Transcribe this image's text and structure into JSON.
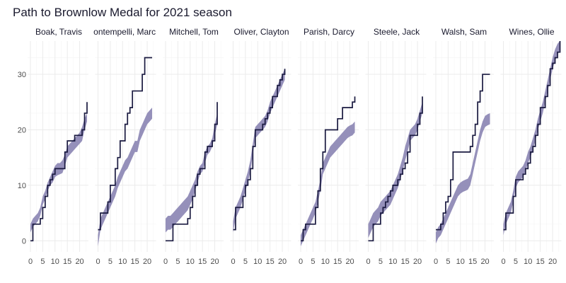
{
  "chart_data": {
    "type": "line",
    "title": "Path to Brownlow Medal for 2021 season",
    "xlabel": "",
    "ylabel": "",
    "xlim": [
      0,
      23
    ],
    "ylim": [
      -2,
      36
    ],
    "x_ticks": [
      0,
      5,
      10,
      15,
      20
    ],
    "y_ticks": [
      0,
      10,
      20,
      30
    ],
    "grid": true,
    "legend": "none",
    "colors": {
      "actual": "#1a1a40",
      "predicted_band": "#8c87b4"
    },
    "panels": [
      {
        "name": "Boak, Travis",
        "actual": [
          0,
          3,
          3,
          3,
          4,
          6,
          8,
          10,
          11,
          12,
          13,
          13,
          13,
          13,
          16,
          18,
          18,
          18,
          19,
          19,
          19,
          20,
          23,
          25
        ],
        "band_lo": [
          1.5,
          2.5,
          3,
          3.5,
          4.5,
          6.5,
          7.5,
          9,
          10,
          10.5,
          11.5,
          11.8,
          12,
          12.2,
          13.5,
          15,
          15.5,
          16,
          16.5,
          17,
          17.5,
          18,
          20,
          21.5
        ],
        "band_hi": [
          3,
          4,
          4.5,
          5,
          6,
          8,
          9,
          10.5,
          11.5,
          12.5,
          13.5,
          14,
          14,
          14.5,
          15.5,
          17,
          17.5,
          18,
          18.5,
          19,
          19.5,
          20.5,
          22,
          23
        ]
      },
      {
        "name": "Bontempelli, Marcus",
        "actual": [
          2,
          5,
          5,
          5,
          7,
          10,
          10,
          13,
          15,
          18,
          18,
          21,
          23,
          24,
          27,
          27,
          27,
          27,
          30,
          33,
          33,
          33,
          33
        ],
        "band_lo": [
          -1,
          2,
          3,
          4,
          5,
          6,
          7,
          8,
          9.5,
          10.5,
          11.5,
          12.5,
          13,
          14,
          15,
          16,
          16,
          18,
          19,
          20,
          21,
          21.5,
          22
        ],
        "band_hi": [
          1,
          4,
          5,
          6,
          7,
          8,
          9,
          10,
          11.5,
          12.5,
          13.5,
          14.5,
          15,
          16,
          17,
          18,
          18,
          20,
          21,
          22,
          23,
          23.5,
          24
        ]
      },
      {
        "name": "Mitchell, Tom",
        "actual": [
          0,
          0,
          0,
          3,
          3,
          3,
          3,
          3,
          3,
          4,
          6,
          8,
          10,
          12,
          13,
          13,
          16,
          17,
          17,
          18,
          21,
          25
        ],
        "band_lo": [
          1.5,
          2,
          2,
          2.5,
          3,
          3.5,
          4,
          4.5,
          5,
          5.5,
          6.5,
          7.5,
          9,
          10.5,
          12,
          12.5,
          14,
          15.5,
          16,
          17,
          19,
          21
        ],
        "band_hi": [
          4,
          4.5,
          4.5,
          5,
          5.5,
          6,
          6.5,
          7,
          7.5,
          8,
          9,
          10,
          11,
          12.5,
          13.5,
          14,
          16,
          17,
          17.5,
          18.5,
          21,
          23
        ]
      },
      {
        "name": "Oliver, Clayton",
        "actual": [
          2,
          6,
          6,
          6,
          8,
          10,
          11,
          13,
          17,
          20,
          20,
          20,
          21,
          22,
          23,
          24,
          26,
          26,
          28,
          29,
          30,
          31
        ],
        "band_lo": [
          1.5,
          4,
          5,
          6,
          7.5,
          9,
          10.5,
          12.5,
          15.5,
          18.5,
          19,
          19.5,
          20,
          20.5,
          21.5,
          23,
          24,
          25,
          26,
          27,
          28,
          29
        ],
        "band_hi": [
          3.5,
          6,
          7,
          8,
          9.5,
          11,
          12.5,
          14.5,
          17.5,
          20.5,
          21,
          21.5,
          22,
          22.5,
          23.5,
          25,
          26,
          27,
          28,
          29,
          30,
          31
        ]
      },
      {
        "name": "Parish, Darcy",
        "actual": [
          0,
          2,
          3,
          3,
          3,
          3,
          6,
          9,
          13,
          16,
          20,
          20,
          20,
          20,
          20,
          22,
          22,
          24,
          24,
          24,
          24,
          25,
          26
        ],
        "band_lo": [
          -1,
          0,
          1,
          2,
          3,
          4,
          5,
          7,
          9,
          12,
          13,
          14,
          15,
          15.5,
          16,
          16.5,
          17,
          17.5,
          18,
          18.5,
          18.8,
          19,
          19.5
        ],
        "band_hi": [
          1,
          2,
          3,
          4,
          5,
          6,
          7,
          9,
          11,
          14,
          15,
          16,
          17,
          17.5,
          18,
          18.5,
          19,
          19.5,
          20,
          20.5,
          20.8,
          21,
          21.5
        ]
      },
      {
        "name": "Steele, Jack",
        "actual": [
          0,
          0,
          3,
          3,
          3,
          5,
          6,
          7,
          8,
          9,
          10,
          10,
          11,
          12,
          13,
          14,
          16,
          19,
          19,
          19,
          21,
          23,
          26
        ],
        "band_lo": [
          0.5,
          1.5,
          2.5,
          3,
          3.5,
          4.5,
          5,
          5.5,
          6,
          6.5,
          7.5,
          8.5,
          9.5,
          11,
          12.5,
          14.5,
          16,
          18,
          18.5,
          19,
          20,
          21.5,
          23
        ],
        "band_hi": [
          3,
          4,
          5,
          5.5,
          6,
          7,
          7.5,
          8,
          8.5,
          9,
          10,
          11,
          12,
          13.5,
          15,
          17,
          18.5,
          20,
          20.5,
          21,
          22,
          23.5,
          25
        ]
      },
      {
        "name": "Walsh, Sam",
        "actual": [
          2,
          2,
          3,
          5,
          7,
          8,
          11,
          16,
          16,
          16,
          16,
          16,
          16,
          16,
          17,
          19,
          21,
          25,
          27,
          30,
          30,
          30,
          30
        ],
        "band_lo": [
          -0.5,
          0.5,
          1,
          2,
          3,
          4,
          5,
          6,
          7,
          8,
          8.5,
          8.8,
          9,
          9.2,
          10,
          12,
          14,
          16,
          18,
          19.5,
          20.5,
          20.8,
          21
        ],
        "band_hi": [
          1.5,
          2.5,
          3,
          4,
          5,
          6,
          7,
          8,
          9,
          10,
          10.5,
          10.8,
          11,
          11.2,
          12,
          14,
          16,
          18,
          20,
          21.5,
          22.5,
          22.8,
          23
        ]
      },
      {
        "name": "Wines, Ollie",
        "actual": [
          2,
          5,
          5,
          5,
          8,
          11,
          11,
          11,
          12,
          13,
          14,
          16,
          17,
          19,
          21,
          24,
          24,
          26,
          28,
          31,
          32,
          33,
          34,
          36
        ],
        "band_lo": [
          1,
          3,
          4,
          5,
          7,
          9.5,
          10.5,
          11,
          11.5,
          12.5,
          14,
          15,
          16.5,
          18,
          20,
          21.5,
          23,
          25,
          27,
          29,
          31,
          32.5,
          33.5,
          34.5
        ],
        "band_hi": [
          3,
          5,
          6,
          7,
          9,
          11.5,
          12.5,
          13,
          13.5,
          14.5,
          16,
          17,
          18.5,
          20,
          22,
          23.5,
          25,
          27,
          29,
          31,
          33,
          34.5,
          35.5,
          36
        ]
      }
    ]
  }
}
